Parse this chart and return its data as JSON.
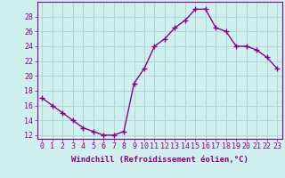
{
  "x": [
    0,
    1,
    2,
    3,
    4,
    5,
    6,
    7,
    8,
    9,
    10,
    11,
    12,
    13,
    14,
    15,
    16,
    17,
    18,
    19,
    20,
    21,
    22,
    23
  ],
  "y": [
    17,
    16,
    15,
    14,
    13,
    12.5,
    12,
    12,
    12.5,
    19,
    21,
    24,
    25,
    26.5,
    27.5,
    29,
    29,
    26.5,
    26,
    24,
    24,
    23.5,
    22.5,
    21
  ],
  "line_color": "#8B008B",
  "marker": "+",
  "marker_size": 4,
  "bg_color": "#d0f0f0",
  "grid_color": "#add8d8",
  "xlabel": "Windchill (Refroidissement éolien,°C)",
  "ylim": [
    11.5,
    30
  ],
  "xlim": [
    -0.5,
    23.5
  ],
  "yticks": [
    12,
    14,
    16,
    18,
    20,
    22,
    24,
    26,
    28
  ],
  "xticks": [
    0,
    1,
    2,
    3,
    4,
    5,
    6,
    7,
    8,
    9,
    10,
    11,
    12,
    13,
    14,
    15,
    16,
    17,
    18,
    19,
    20,
    21,
    22,
    23
  ],
  "xtick_labels": [
    "0",
    "1",
    "2",
    "3",
    "4",
    "5",
    "6",
    "7",
    "8",
    "9",
    "10",
    "11",
    "12",
    "13",
    "14",
    "15",
    "16",
    "17",
    "18",
    "19",
    "20",
    "21",
    "22",
    "23"
  ],
  "xlabel_fontsize": 6.5,
  "tick_fontsize": 6,
  "line_width": 1.0,
  "marker_linewidth": 1.0
}
